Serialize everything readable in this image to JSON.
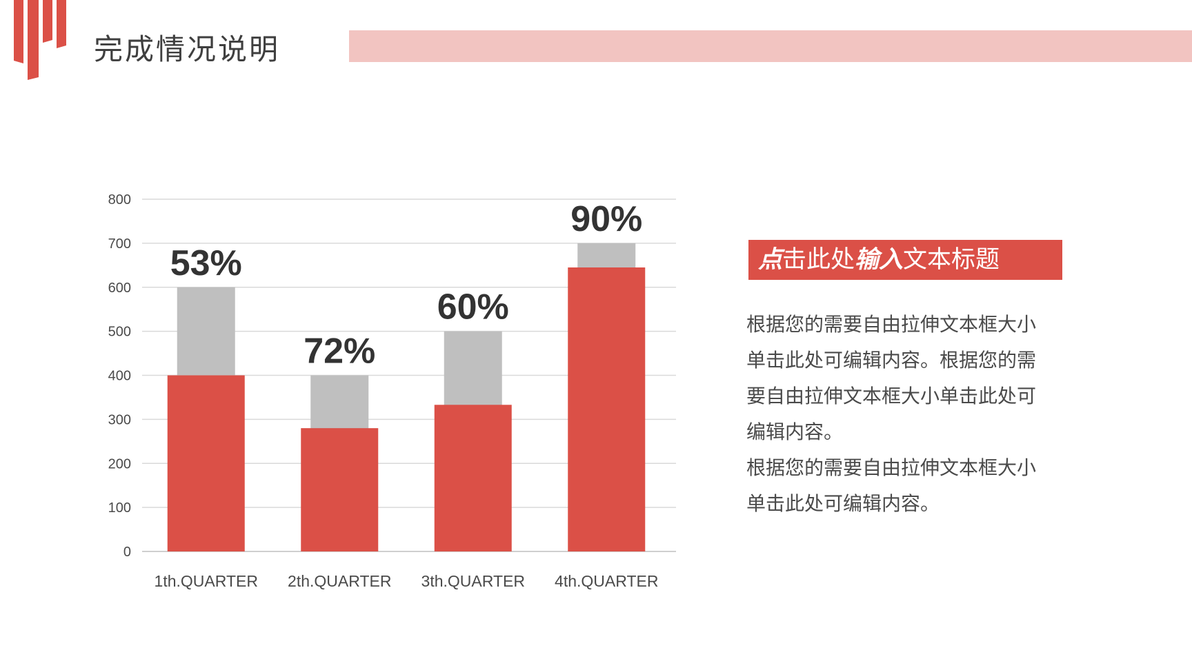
{
  "header": {
    "title": "完成情况说明"
  },
  "colors": {
    "accent": "#db5047",
    "band": "#f2c4c1",
    "gray_bar": "#bfbfbf"
  },
  "chart_data": {
    "type": "bar",
    "categories": [
      "1th.QUARTER",
      "2th.QUARTER",
      "3th.QUARTER",
      "4th.QUARTER"
    ],
    "series": [
      {
        "values": [
          400,
          280,
          333,
          645
        ],
        "color": "#db5047"
      },
      {
        "values": [
          600,
          400,
          500,
          700
        ],
        "color": "#bfbfbf"
      }
    ],
    "data_labels": [
      "53%",
      "72%",
      "60%",
      "90%"
    ],
    "ylim": [
      0,
      800
    ],
    "yticks": [
      0,
      100,
      200,
      300,
      400,
      500,
      600,
      700,
      800
    ],
    "grid": true,
    "xlabel": "",
    "ylabel": ""
  },
  "side_panel": {
    "title_parts": [
      "点",
      "击此处",
      "输入",
      "文本标题"
    ],
    "paragraphs": [
      "根据您的需要自由拉伸文本框大小单击此处可编辑内容。根据您的需要自由拉伸文本框大小单击此处可编辑内容。",
      "根据您的需要自由拉伸文本框大小单击此处可编辑内容。"
    ]
  }
}
